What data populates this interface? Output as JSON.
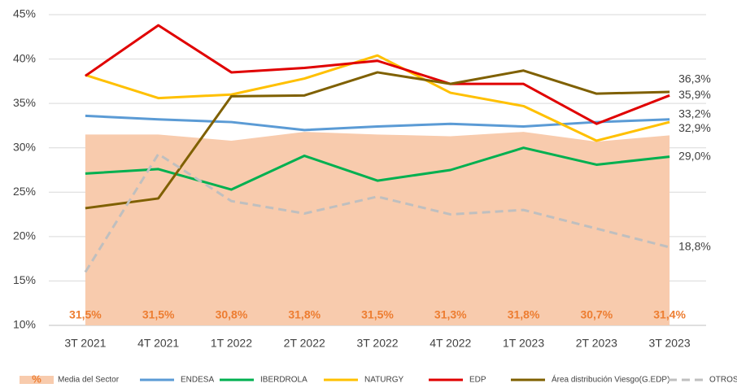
{
  "chart_data": {
    "type": "line",
    "categories": [
      "3T 2021",
      "4T 2021",
      "1T 2022",
      "2T 2022",
      "3T 2022",
      "4T 2022",
      "1T 2023",
      "2T 2023",
      "3T 2023"
    ],
    "ylim": [
      10,
      45
    ],
    "yticks": [
      {
        "value": 10,
        "label": "10%"
      },
      {
        "value": 15,
        "label": "15%"
      },
      {
        "value": 20,
        "label": "20%"
      },
      {
        "value": 25,
        "label": "25%"
      },
      {
        "value": 30,
        "label": "30%"
      },
      {
        "value": 35,
        "label": "35%"
      },
      {
        "value": 40,
        "label": "40%"
      },
      {
        "value": 45,
        "label": "45%"
      }
    ],
    "grid": true,
    "legend": "bottom",
    "area": {
      "name": "Media del Sector",
      "legend_symbol": "%",
      "color": "#f8cbad",
      "label_color": "#ed7d31",
      "values": [
        31.5,
        31.5,
        30.8,
        31.8,
        31.5,
        31.3,
        31.8,
        30.7,
        31.4
      ],
      "value_labels": [
        "31,5%",
        "31,5%",
        "30,8%",
        "31,8%",
        "31,5%",
        "31,3%",
        "31,8%",
        "30,7%",
        "31,4%"
      ]
    },
    "series": [
      {
        "name": "ENDESA",
        "color": "#5b9bd5",
        "values": [
          33.6,
          33.2,
          32.9,
          32.0,
          32.4,
          32.7,
          32.4,
          32.9,
          33.2
        ],
        "value_labels": [
          null,
          null,
          null,
          null,
          null,
          null,
          null,
          null,
          "33,2%"
        ]
      },
      {
        "name": "IBERDROLA",
        "color": "#00b050",
        "values": [
          27.1,
          27.6,
          25.3,
          29.1,
          26.3,
          27.5,
          30.0,
          28.1,
          29.0
        ],
        "value_labels": [
          null,
          null,
          null,
          null,
          null,
          null,
          null,
          null,
          "29,0%"
        ]
      },
      {
        "name": "NATURGY",
        "color": "#ffc000",
        "values": [
          38.2,
          35.6,
          36.0,
          37.8,
          40.4,
          36.2,
          34.7,
          30.8,
          32.9
        ],
        "value_labels": [
          null,
          null,
          null,
          null,
          null,
          null,
          null,
          null,
          "32,9%"
        ]
      },
      {
        "name": "EDP",
        "color": "#e00000",
        "values": [
          38.1,
          43.8,
          38.5,
          39.0,
          39.8,
          37.2,
          37.2,
          32.7,
          35.9
        ],
        "value_labels": [
          null,
          null,
          null,
          null,
          null,
          null,
          null,
          null,
          "35,9%"
        ]
      },
      {
        "name": "Área distribución Viesgo(G.EDP)",
        "color": "#7f6000",
        "values": [
          23.2,
          24.3,
          35.8,
          35.9,
          38.5,
          37.2,
          38.7,
          36.1,
          36.3
        ],
        "value_labels": [
          null,
          null,
          null,
          null,
          null,
          null,
          null,
          null,
          "36,3%"
        ]
      },
      {
        "name": "OTROS",
        "color": "#bfbfbf",
        "dashed": true,
        "values": [
          16.0,
          29.3,
          24.0,
          22.6,
          24.5,
          22.5,
          23.0,
          20.9,
          18.8
        ],
        "value_labels": [
          null,
          null,
          null,
          null,
          null,
          null,
          null,
          null,
          "18,8%"
        ]
      }
    ]
  }
}
